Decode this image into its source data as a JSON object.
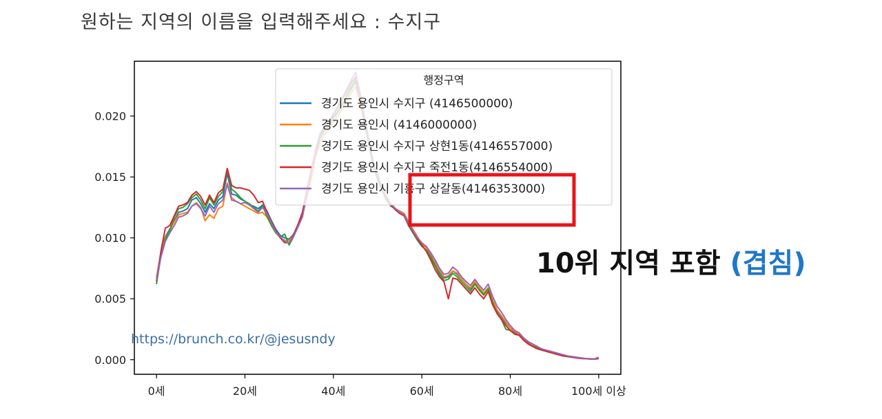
{
  "prompt_text": "원하는 지역의 이름을 입력해주세요 : 수지구",
  "callout": {
    "main": "10위 지역 포함",
    "paren": "(겹침)"
  },
  "watermark": "https://brunch.co.kr/@jesusndy",
  "chart_data": {
    "type": "line",
    "legend_title": "행정구역",
    "legend_position": "top-right",
    "grid": false,
    "x_tick_labels": [
      "0세",
      "20세",
      "40세",
      "60세",
      "80세",
      "100세 이상"
    ],
    "x_tick_values": [
      0,
      20,
      40,
      60,
      80,
      100
    ],
    "y_tick_labels": [
      "0.000",
      "0.005",
      "0.010",
      "0.015",
      "0.020"
    ],
    "y_tick_values": [
      0,
      0.005,
      0.01,
      0.015,
      0.02
    ],
    "xlim": [
      -5,
      105
    ],
    "ylim": [
      -0.0012,
      0.0245
    ],
    "x": [
      0,
      1,
      2,
      3,
      4,
      5,
      6,
      7,
      8,
      9,
      10,
      11,
      12,
      13,
      14,
      15,
      16,
      17,
      18,
      19,
      20,
      21,
      22,
      23,
      24,
      25,
      26,
      27,
      28,
      29,
      30,
      31,
      32,
      33,
      34,
      35,
      36,
      37,
      38,
      39,
      40,
      41,
      42,
      43,
      44,
      45,
      46,
      47,
      48,
      49,
      50,
      51,
      52,
      53,
      54,
      55,
      56,
      57,
      58,
      59,
      60,
      61,
      62,
      63,
      64,
      65,
      66,
      67,
      68,
      69,
      70,
      71,
      72,
      73,
      74,
      75,
      76,
      77,
      78,
      79,
      80,
      81,
      82,
      83,
      84,
      85,
      86,
      87,
      88,
      89,
      90,
      91,
      92,
      93,
      94,
      95,
      96,
      97,
      98,
      99,
      100
    ],
    "series": [
      {
        "name": "경기도 용인시 수지구 (4146500000)",
        "color": "#1f77b4",
        "values": [
          0.0066,
          0.0088,
          0.0101,
          0.0107,
          0.0114,
          0.0121,
          0.0122,
          0.0124,
          0.0131,
          0.0133,
          0.0128,
          0.0121,
          0.0128,
          0.0124,
          0.0131,
          0.0134,
          0.0153,
          0.0136,
          0.0135,
          0.0132,
          0.013,
          0.0127,
          0.0126,
          0.0124,
          0.0127,
          0.0122,
          0.0114,
          0.0107,
          0.0102,
          0.01,
          0.0099,
          0.0103,
          0.0111,
          0.0119,
          0.0136,
          0.0152,
          0.017,
          0.0182,
          0.0188,
          0.0192,
          0.0198,
          0.0203,
          0.0209,
          0.0216,
          0.0222,
          0.0228,
          0.0215,
          0.0196,
          0.0178,
          0.016,
          0.015,
          0.014,
          0.0133,
          0.0128,
          0.0124,
          0.0122,
          0.012,
          0.0113,
          0.0106,
          0.01,
          0.0095,
          0.0092,
          0.0086,
          0.0079,
          0.0072,
          0.0067,
          0.0068,
          0.0073,
          0.007,
          0.0066,
          0.0062,
          0.0058,
          0.0063,
          0.0058,
          0.0054,
          0.0059,
          0.0048,
          0.004,
          0.0035,
          0.003,
          0.0026,
          0.0022,
          0.0021,
          0.0017,
          0.0014,
          0.0012,
          0.001,
          0.0009,
          0.0007,
          0.0006,
          0.0005,
          0.0004,
          0.0003,
          0.00025,
          0.0002,
          0.00015,
          0.0001,
          8e-05,
          6e-05,
          4e-05,
          0.0001
        ]
      },
      {
        "name": "경기도 용인시 (4146000000)",
        "color": "#ff7f0e",
        "values": [
          0.0068,
          0.0087,
          0.01,
          0.0106,
          0.0113,
          0.0119,
          0.012,
          0.0121,
          0.0126,
          0.0129,
          0.0125,
          0.0114,
          0.0119,
          0.0116,
          0.0124,
          0.0126,
          0.0145,
          0.0133,
          0.013,
          0.0128,
          0.0126,
          0.0124,
          0.0122,
          0.012,
          0.0121,
          0.0117,
          0.011,
          0.0104,
          0.01,
          0.0098,
          0.0098,
          0.0102,
          0.011,
          0.0118,
          0.0133,
          0.0149,
          0.0167,
          0.0178,
          0.0185,
          0.0189,
          0.0195,
          0.02,
          0.0206,
          0.0213,
          0.0219,
          0.0224,
          0.0212,
          0.0194,
          0.0177,
          0.0159,
          0.0149,
          0.0139,
          0.0131,
          0.0127,
          0.0124,
          0.0122,
          0.012,
          0.0113,
          0.0107,
          0.0101,
          0.0095,
          0.0092,
          0.0087,
          0.008,
          0.0073,
          0.0068,
          0.0069,
          0.0073,
          0.0071,
          0.0066,
          0.0062,
          0.0059,
          0.0064,
          0.0059,
          0.0055,
          0.0059,
          0.0049,
          0.0041,
          0.0036,
          0.0031,
          0.0026,
          0.0023,
          0.0021,
          0.0017,
          0.0015,
          0.0012,
          0.001,
          0.0009,
          0.0007,
          0.0006,
          0.0005,
          0.0004,
          0.0003,
          0.00025,
          0.0002,
          0.00015,
          0.0001,
          8e-05,
          6e-05,
          4e-05,
          0.0001
        ]
      },
      {
        "name": "경기도 용인시 수지구 상현1동(4146557000)",
        "color": "#2ca02c",
        "values": [
          0.0062,
          0.0085,
          0.0099,
          0.0106,
          0.0117,
          0.0124,
          0.0125,
          0.0128,
          0.0133,
          0.0136,
          0.0131,
          0.0124,
          0.0133,
          0.0127,
          0.0134,
          0.0138,
          0.0156,
          0.014,
          0.0137,
          0.0133,
          0.013,
          0.0128,
          0.0125,
          0.0122,
          0.0126,
          0.0118,
          0.011,
          0.0104,
          0.0101,
          0.0103,
          0.0094,
          0.0101,
          0.011,
          0.0118,
          0.0137,
          0.0155,
          0.0171,
          0.0184,
          0.019,
          0.0193,
          0.0199,
          0.0204,
          0.021,
          0.0217,
          0.0224,
          0.023,
          0.0216,
          0.0196,
          0.0177,
          0.0159,
          0.0148,
          0.0139,
          0.0131,
          0.0126,
          0.0124,
          0.0121,
          0.0118,
          0.011,
          0.0104,
          0.0098,
          0.0093,
          0.009,
          0.0084,
          0.0077,
          0.007,
          0.0065,
          0.0066,
          0.0071,
          0.0068,
          0.0064,
          0.006,
          0.0056,
          0.0062,
          0.0057,
          0.0053,
          0.0058,
          0.0047,
          0.0038,
          0.0033,
          0.0025,
          0.0024,
          0.0021,
          0.002,
          0.0016,
          0.0013,
          0.0011,
          0.001,
          0.0008,
          0.0007,
          0.0006,
          0.0005,
          0.0004,
          0.0003,
          0.00025,
          0.0002,
          0.00015,
          0.0001,
          8e-05,
          6e-05,
          4e-05,
          0.0001
        ]
      },
      {
        "name": "경기도 용인시 수지구 죽전1동(4146554000)",
        "color": "#d62728",
        "values": [
          0.0064,
          0.0089,
          0.0108,
          0.011,
          0.0118,
          0.0126,
          0.0127,
          0.0129,
          0.0135,
          0.0138,
          0.0134,
          0.0127,
          0.0135,
          0.0129,
          0.0137,
          0.014,
          0.0157,
          0.0143,
          0.0141,
          0.0141,
          0.014,
          0.0139,
          0.0135,
          0.0129,
          0.013,
          0.0121,
          0.0113,
          0.0106,
          0.01,
          0.0096,
          0.0096,
          0.0102,
          0.0111,
          0.0121,
          0.0139,
          0.0156,
          0.0172,
          0.0185,
          0.0191,
          0.0195,
          0.0201,
          0.0207,
          0.0214,
          0.022,
          0.0227,
          0.0232,
          0.0218,
          0.0198,
          0.018,
          0.0162,
          0.0152,
          0.0141,
          0.0133,
          0.0127,
          0.0123,
          0.012,
          0.0118,
          0.0111,
          0.0105,
          0.0099,
          0.0094,
          0.0089,
          0.0082,
          0.0074,
          0.0068,
          0.0064,
          0.005,
          0.0067,
          0.0066,
          0.0062,
          0.0058,
          0.0054,
          0.0059,
          0.0054,
          0.005,
          0.0056,
          0.0045,
          0.0038,
          0.0033,
          0.0028,
          0.0024,
          0.0021,
          0.002,
          0.0016,
          0.0013,
          0.0011,
          0.0009,
          0.0008,
          0.0007,
          0.0006,
          0.0005,
          0.0004,
          0.0003,
          0.00025,
          0.0002,
          0.00015,
          0.0001,
          8e-05,
          6e-05,
          4e-05,
          0.0001
        ]
      },
      {
        "name": "경기도 용인시 기흥구 상갈동(4146353000)",
        "color": "#9467bd",
        "values": [
          0.0065,
          0.0084,
          0.0097,
          0.0104,
          0.011,
          0.0117,
          0.0118,
          0.012,
          0.0126,
          0.0128,
          0.0124,
          0.0118,
          0.0126,
          0.0121,
          0.0128,
          0.0131,
          0.0144,
          0.0131,
          0.013,
          0.0128,
          0.0129,
          0.0127,
          0.0124,
          0.0121,
          0.0125,
          0.012,
          0.0112,
          0.0105,
          0.0101,
          0.0097,
          0.0096,
          0.0101,
          0.0109,
          0.0117,
          0.0136,
          0.0153,
          0.0173,
          0.0186,
          0.0192,
          0.0196,
          0.0202,
          0.0208,
          0.0215,
          0.0222,
          0.0229,
          0.0236,
          0.022,
          0.02,
          0.0181,
          0.0163,
          0.0151,
          0.0141,
          0.0134,
          0.0128,
          0.0124,
          0.0121,
          0.0119,
          0.0112,
          0.0106,
          0.01,
          0.0096,
          0.0093,
          0.0088,
          0.0082,
          0.0075,
          0.007,
          0.0071,
          0.0076,
          0.0073,
          0.0068,
          0.0064,
          0.0061,
          0.0066,
          0.0061,
          0.0057,
          0.0062,
          0.0052,
          0.0044,
          0.0039,
          0.0033,
          0.0028,
          0.0024,
          0.0022,
          0.0018,
          0.0015,
          0.0013,
          0.0011,
          0.0009,
          0.0008,
          0.0007,
          0.0006,
          0.0005,
          0.0004,
          0.0003,
          0.00025,
          0.0002,
          0.00015,
          0.0001,
          8e-05,
          6e-05,
          0.0002
        ]
      }
    ]
  }
}
